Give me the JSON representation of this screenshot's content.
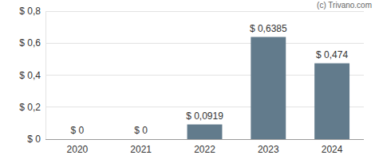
{
  "chart_data": {
    "type": "bar",
    "annotation": "(c) Trivano.com",
    "categories": [
      "2020",
      "2021",
      "2022",
      "2023",
      "2024"
    ],
    "values": [
      0,
      0,
      0.0919,
      0.6385,
      0.474
    ],
    "value_labels": [
      "$ 0",
      "$ 0",
      "$ 0,0919",
      "$ 0,6385",
      "$ 0,474"
    ],
    "data_labels": true,
    "color": "#627b8c",
    "ylim": [
      0,
      0.8
    ],
    "yticks": [
      {
        "value": 0,
        "label": "$ 0"
      },
      {
        "value": 0.2,
        "label": "$ 0,2"
      },
      {
        "value": 0.4,
        "label": "$ 0,4"
      },
      {
        "value": 0.6,
        "label": "$ 0,6"
      },
      {
        "value": 0.8,
        "label": "$ 0,8"
      }
    ],
    "grid": true
  }
}
